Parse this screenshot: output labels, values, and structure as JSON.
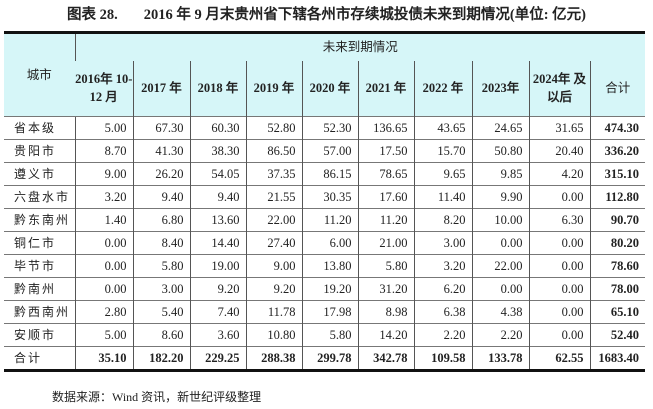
{
  "title": {
    "label": "图表 28.",
    "text": "2016 年 9 月末贵州省下辖各州市存续城投债未来到期情况(单位: 亿元)"
  },
  "table": {
    "city_header": "城市",
    "group_header": "未来到期情况",
    "columns": [
      "2016年 10-12 月",
      "2017 年",
      "2018 年",
      "2019 年",
      "2020 年",
      "2021 年",
      "2022 年",
      "2023年",
      "2024年 及以后",
      "合计"
    ],
    "rows": [
      {
        "city": "省本级",
        "values": [
          "5.00",
          "67.30",
          "60.30",
          "52.80",
          "52.30",
          "136.65",
          "43.65",
          "24.65",
          "31.65",
          "474.30"
        ]
      },
      {
        "city": "贵阳市",
        "values": [
          "8.70",
          "41.30",
          "38.30",
          "86.50",
          "57.00",
          "17.50",
          "15.70",
          "50.80",
          "20.40",
          "336.20"
        ]
      },
      {
        "city": "遵义市",
        "values": [
          "9.00",
          "26.20",
          "54.05",
          "37.35",
          "86.15",
          "78.65",
          "9.65",
          "9.85",
          "4.20",
          "315.10"
        ]
      },
      {
        "city": "六盘水市",
        "values": [
          "3.20",
          "9.40",
          "9.40",
          "21.55",
          "30.35",
          "17.60",
          "11.40",
          "9.90",
          "0.00",
          "112.80"
        ]
      },
      {
        "city": "黔东南州",
        "values": [
          "1.40",
          "6.80",
          "13.60",
          "22.00",
          "11.20",
          "11.20",
          "8.20",
          "10.00",
          "6.30",
          "90.70"
        ]
      },
      {
        "city": "铜仁市",
        "values": [
          "0.00",
          "8.40",
          "14.40",
          "27.40",
          "6.00",
          "21.00",
          "3.00",
          "0.00",
          "0.00",
          "80.20"
        ]
      },
      {
        "city": "毕节市",
        "values": [
          "0.00",
          "5.80",
          "19.00",
          "9.00",
          "13.80",
          "5.80",
          "3.20",
          "22.00",
          "0.00",
          "78.60"
        ]
      },
      {
        "city": "黔南州",
        "values": [
          "0.00",
          "3.00",
          "9.20",
          "9.20",
          "19.20",
          "31.20",
          "6.20",
          "0.00",
          "0.00",
          "78.00"
        ]
      },
      {
        "city": "黔西南州",
        "values": [
          "2.80",
          "5.40",
          "7.40",
          "11.78",
          "17.98",
          "8.98",
          "6.38",
          "4.38",
          "0.00",
          "65.10"
        ]
      },
      {
        "city": "安顺市",
        "values": [
          "5.00",
          "8.60",
          "3.60",
          "10.80",
          "5.80",
          "14.20",
          "2.20",
          "2.20",
          "0.00",
          "52.40"
        ]
      }
    ],
    "total": {
      "city": "合计",
      "values": [
        "35.10",
        "182.20",
        "229.25",
        "288.38",
        "299.78",
        "342.78",
        "109.58",
        "133.78",
        "62.55",
        "1683.40"
      ]
    }
  },
  "source": "数据来源：Wind 资讯，新世纪评级整理"
}
